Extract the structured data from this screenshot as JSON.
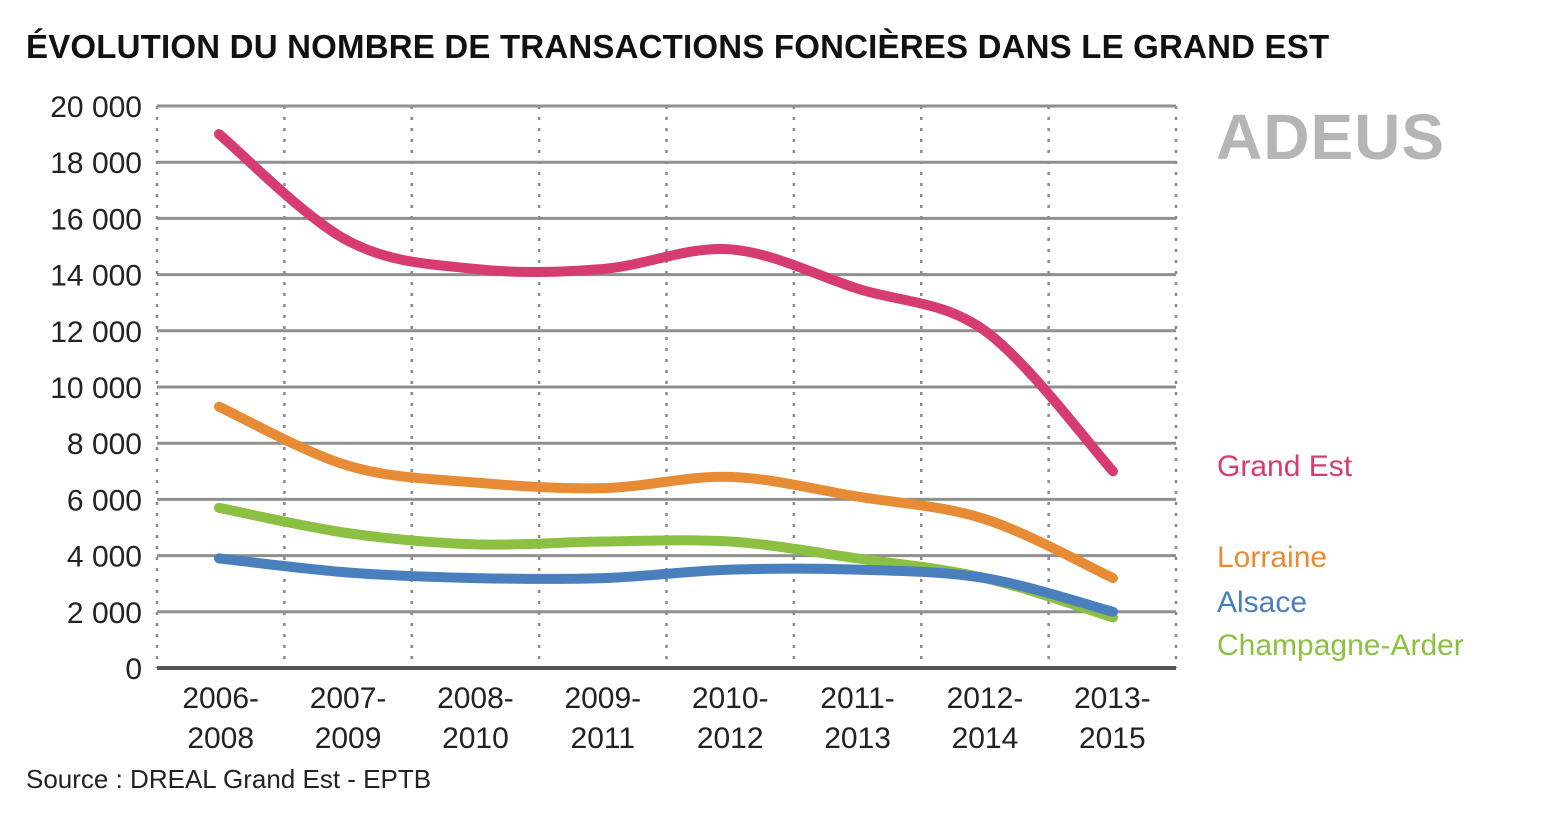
{
  "chart_data": {
    "type": "line",
    "title": "ÉVOLUTION DU NOMBRE DE TRANSACTIONS FONCIÈRES DANS LE GRAND EST",
    "xlabel": "",
    "ylabel": "",
    "ylim": [
      0,
      20000
    ],
    "yticks": [
      0,
      2000,
      4000,
      6000,
      8000,
      10000,
      12000,
      14000,
      16000,
      18000,
      20000
    ],
    "ytick_labels": [
      "0",
      "2 000",
      "4 000",
      "6 000",
      "8 000",
      "10 000",
      "12 000",
      "14 000",
      "16 000",
      "18 000",
      "20 000"
    ],
    "categories": [
      [
        "2006-",
        "2008"
      ],
      [
        "2007-",
        "2009"
      ],
      [
        "2008-",
        "2010"
      ],
      [
        "2009-",
        "2011"
      ],
      [
        "2010-",
        "2012"
      ],
      [
        "2011-",
        "2013"
      ],
      [
        "2012-",
        "2014"
      ],
      [
        "2013-",
        "2015"
      ]
    ],
    "grid": true,
    "legend_position": "right",
    "series": [
      {
        "name": "Grand Est",
        "color": "#d63b72",
        "values": [
          19000,
          15200,
          14200,
          14200,
          14900,
          13500,
          12000,
          7000
        ]
      },
      {
        "name": "Lorraine",
        "color": "#e88b35",
        "values": [
          9300,
          7200,
          6600,
          6400,
          6800,
          6100,
          5300,
          3200
        ]
      },
      {
        "name": "Alsace",
        "color": "#4a7fbd",
        "values": [
          3900,
          3400,
          3200,
          3200,
          3500,
          3500,
          3200,
          2000
        ]
      },
      {
        "name": "Champagne-Ardenne",
        "color": "#8cc043",
        "values": [
          5700,
          4800,
          4400,
          4500,
          4500,
          3900,
          3200,
          1800
        ]
      }
    ],
    "legend_labels": [
      "Grand Est",
      "Lorraine",
      "Alsace",
      "Champagne-Arder"
    ],
    "source": "Source : DREAL Grand Est - EPTB",
    "logo": "ADEUS"
  }
}
